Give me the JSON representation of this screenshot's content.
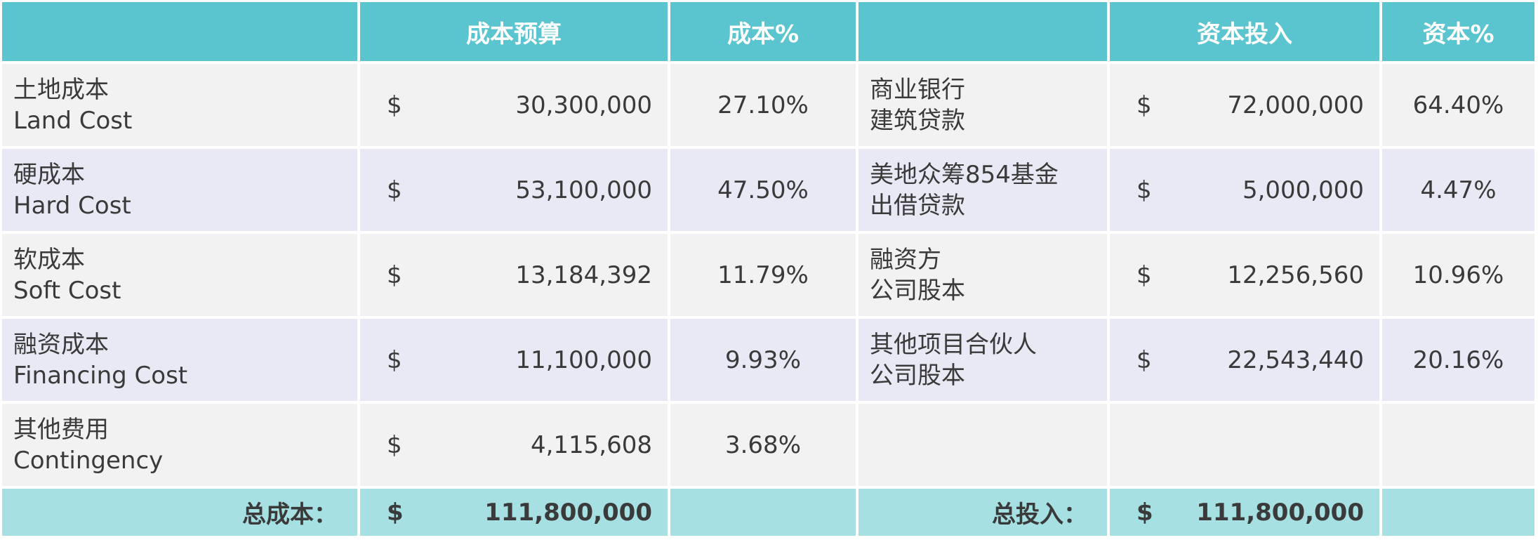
{
  "header": {
    "cost_budget": "成本预算",
    "cost_pct": "成本%",
    "capital_investment": "资本投入",
    "capital_pct": "资本%"
  },
  "rows": [
    {
      "cost_zh": "土地成本",
      "cost_en": "Land Cost",
      "cost_currency": "$",
      "cost_amount": "30,300,000",
      "cost_pct": "27.10%",
      "source_line1": "商业银行",
      "source_line2": "建筑贷款",
      "source_currency": "$",
      "source_amount": "72,000,000",
      "source_pct": "64.40%"
    },
    {
      "cost_zh": "硬成本",
      "cost_en": "Hard Cost",
      "cost_currency": "$",
      "cost_amount": "53,100,000",
      "cost_pct": "47.50%",
      "source_line1": "美地众筹854基金",
      "source_line2": "出借贷款",
      "source_currency": "$",
      "source_amount": "5,000,000",
      "source_pct": "4.47%"
    },
    {
      "cost_zh": "软成本",
      "cost_en": "Soft Cost",
      "cost_currency": "$",
      "cost_amount": "13,184,392",
      "cost_pct": "11.79%",
      "source_line1": "融资方",
      "source_line2": "公司股本",
      "source_currency": "$",
      "source_amount": "12,256,560",
      "source_pct": "10.96%"
    },
    {
      "cost_zh": "融资成本",
      "cost_en": "Financing Cost",
      "cost_currency": "$",
      "cost_amount": "11,100,000",
      "cost_pct": "9.93%",
      "source_line1": "其他项目合伙人",
      "source_line2": "公司股本",
      "source_currency": "$",
      "source_amount": "22,543,440",
      "source_pct": "20.16%"
    },
    {
      "cost_zh": "其他费用",
      "cost_en": "Contingency",
      "cost_currency": "$",
      "cost_amount": "4,115,608",
      "cost_pct": "3.68%",
      "source_line1": "",
      "source_line2": "",
      "source_currency": "",
      "source_amount": "",
      "source_pct": ""
    }
  ],
  "totals": {
    "total_cost_label": "总成本：",
    "total_cost_currency": "$",
    "total_cost_amount": "111,800,000",
    "total_investment_label": "总投入：",
    "total_investment_currency": "$",
    "total_investment_amount": "111,800,000"
  },
  "colors": {
    "header_bg": "#5bc5cf",
    "row_light": "#f2f2f2",
    "row_lavender": "#e8e9f5",
    "total_bg": "#a6e0e2"
  }
}
